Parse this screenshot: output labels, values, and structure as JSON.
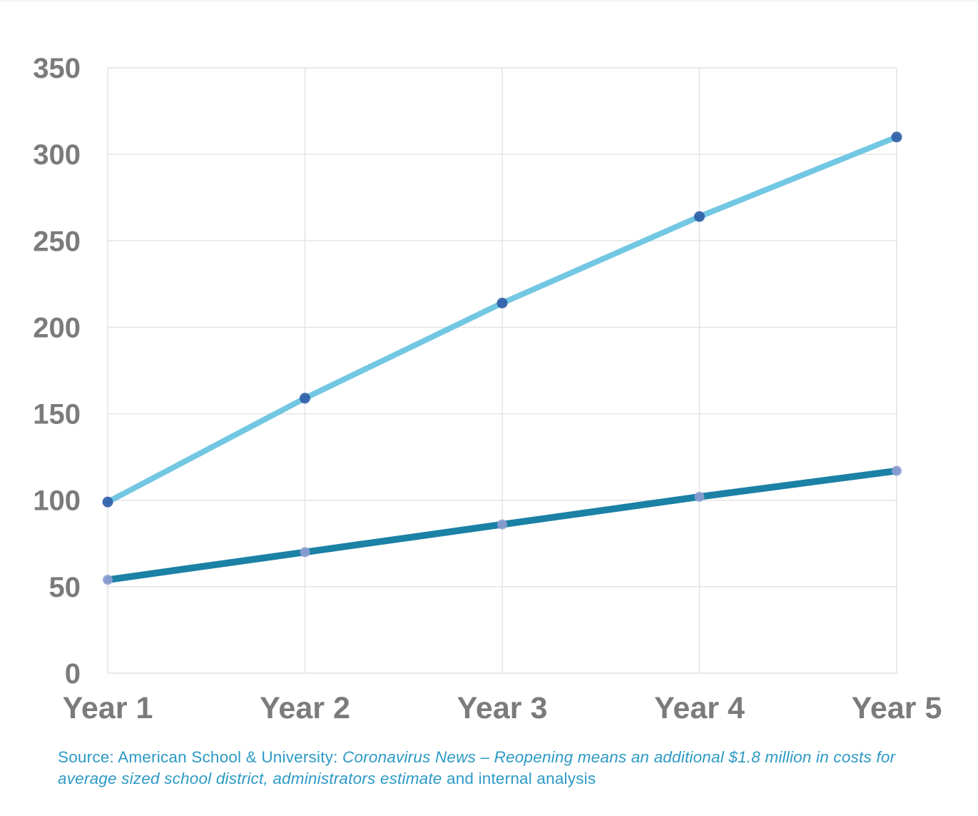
{
  "chart_data": {
    "type": "line",
    "title": "",
    "xlabel": "",
    "ylabel": "",
    "categories": [
      "Year 1",
      "Year 2",
      "Year 3",
      "Year 4",
      "Year 5"
    ],
    "series": [
      {
        "name": "upper-light-blue-line",
        "values": [
          99,
          159,
          214,
          264,
          310
        ],
        "line_color": "#72c7e2",
        "marker_color": "#2e5ca6",
        "line_width": 8,
        "marker_radius": 7.5
      },
      {
        "name": "lower-teal-line",
        "values": [
          54,
          70,
          86,
          102,
          117
        ],
        "line_color": "#1b81a5",
        "marker_color": "#8e9ed2",
        "line_width": 9.5,
        "marker_radius": 7
      }
    ],
    "ylim": [
      0,
      350
    ],
    "ytick_step": 50,
    "yticks": [
      0,
      50,
      100,
      150,
      200,
      250,
      300,
      350
    ],
    "grid": "horizontal-and-vertical",
    "legend": "none"
  },
  "colors": {
    "axis_label": "#7b7b7b",
    "gridline": "#e2e2e2",
    "source_text": "#2d9ac5",
    "background": "#ffffff"
  },
  "source": {
    "lines": [
      [
        {
          "text": "Source: American School & University: ",
          "italic": false
        },
        {
          "text": "Coronavirus News – Reopening means an additional $1.8 million in costs for",
          "italic": true
        }
      ],
      [
        {
          "text": "average sized school district, administrators estimate",
          "italic": true
        },
        {
          "text": " and internal analysis",
          "italic": false
        }
      ]
    ]
  }
}
